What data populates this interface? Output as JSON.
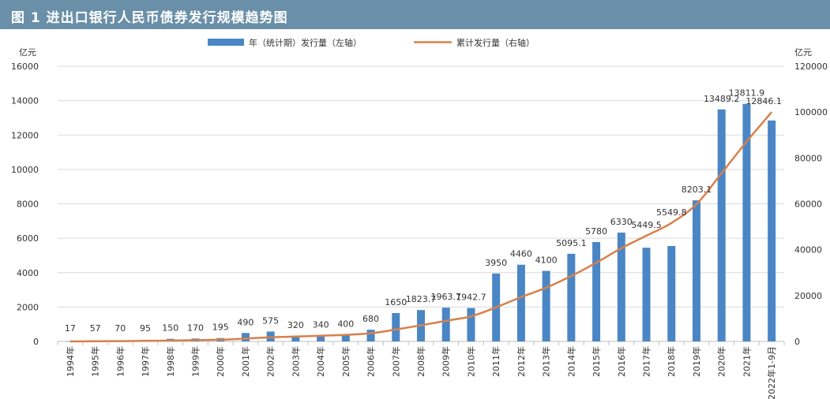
{
  "title": "图 1   进出口银行人民币债券发行规模趋势图",
  "colors": {
    "title_bg": "#6a8fa9",
    "bar": "#4a86c5",
    "line": "#d8804a",
    "grid": "#d9d9d9"
  },
  "chart_data": {
    "type": "bar+line",
    "title": "图 1   进出口银行人民币债券发行规模趋势图",
    "left_unit": "亿元",
    "right_unit": "亿元",
    "categories": [
      "1994年",
      "1995年",
      "1996年",
      "1997年",
      "1998年",
      "1999年",
      "2000年",
      "2001年",
      "2002年",
      "2003年",
      "2004年",
      "2005年",
      "2006年",
      "2007年",
      "2008年",
      "2009年",
      "2010年",
      "2011年",
      "2012年",
      "2013年",
      "2014年",
      "2015年",
      "2016年",
      "2017年",
      "2018年",
      "2019年",
      "2020年",
      "2021年",
      "2022年1-9月"
    ],
    "series": [
      {
        "name": "年（统计期）发行量（左轴）",
        "type": "bar",
        "axis": "left",
        "values": [
          17,
          57,
          70,
          95,
          150,
          170,
          195,
          490,
          575,
          320,
          340,
          400,
          680,
          1650,
          1823.7,
          1963.7,
          1942.7,
          3950,
          4460,
          4100,
          5095.1,
          5780,
          6330,
          5449.5,
          5549.8,
          8203.1,
          13489.2,
          13811.9,
          12846.1
        ],
        "labels": [
          "17",
          "57",
          "70",
          "95",
          "150",
          "170",
          "195",
          "490",
          "575",
          "320",
          "340",
          "400",
          "680",
          "1650",
          "1823.7",
          "1963.7",
          "1942.7",
          "3950",
          "4460",
          "4100",
          "5095.1",
          "5780",
          "6330",
          "5449.5",
          "5549.8",
          "8203.1",
          "13489.2",
          "13811.9",
          "12846.1"
        ]
      },
      {
        "name": "累计发行量（右轴）",
        "type": "line",
        "axis": "right",
        "values": [
          17,
          74,
          144,
          239,
          389,
          559,
          754,
          1244,
          1819,
          2139,
          2479,
          2879,
          3559,
          5209,
          7032.7,
          8996.4,
          10939.1,
          14889.1,
          19349.1,
          23449.1,
          28544.2,
          34324.2,
          40654.2,
          46103.7,
          51653.5,
          59856.6,
          73345.8,
          87157.7,
          100003.8
        ]
      }
    ],
    "left_axis": {
      "min": 0,
      "max": 16000,
      "ticks": [
        0,
        2000,
        4000,
        6000,
        8000,
        10000,
        12000,
        14000,
        16000
      ],
      "tick_labels": [
        "0",
        "2000",
        "4000",
        "6000",
        "8000",
        "10000",
        "12000",
        "14000",
        "16000"
      ]
    },
    "right_axis": {
      "min": 0,
      "max": 120000,
      "ticks": [
        0,
        20000,
        40000,
        60000,
        80000,
        100000,
        120000
      ],
      "tick_labels": [
        "0",
        "20000",
        "40000",
        "60000",
        "80000",
        "100000",
        "120000"
      ]
    },
    "grid": true,
    "legend_position": "top-center"
  }
}
